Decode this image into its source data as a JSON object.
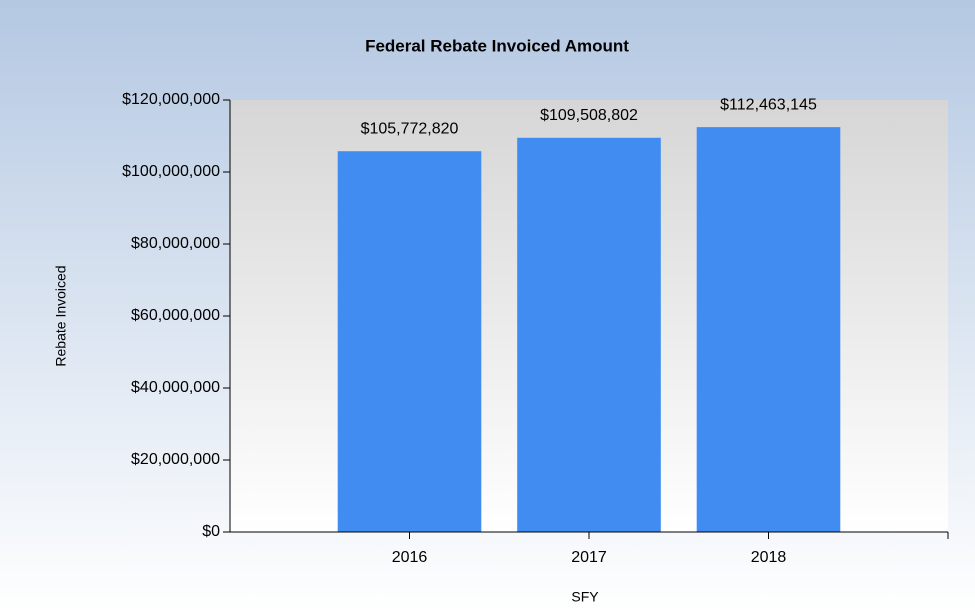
{
  "chart_data": {
    "type": "bar",
    "title": "Federal Rebate Invoiced Amount",
    "x_label": "SFY",
    "y_label": "Rebate Invoiced",
    "categories": [
      "2016",
      "2017",
      "2018"
    ],
    "values": [
      105772820,
      109508802,
      112463145
    ],
    "value_labels": [
      "$105,772,820",
      "$109,508,802",
      "$112,463,145"
    ],
    "color": "#418cf0",
    "ylim": [
      0,
      120000000
    ],
    "yticks": [
      {
        "value": 0,
        "label": "$0"
      },
      {
        "value": 20000000,
        "label": "$20,000,000"
      },
      {
        "value": 40000000,
        "label": "$40,000,000"
      },
      {
        "value": 60000000,
        "label": "$60,000,000"
      },
      {
        "value": 80000000,
        "label": "$80,000,000"
      },
      {
        "value": 100000000,
        "label": "$100,000,000"
      },
      {
        "value": 120000000,
        "label": "$120,000,000"
      }
    ],
    "grid": false
  }
}
